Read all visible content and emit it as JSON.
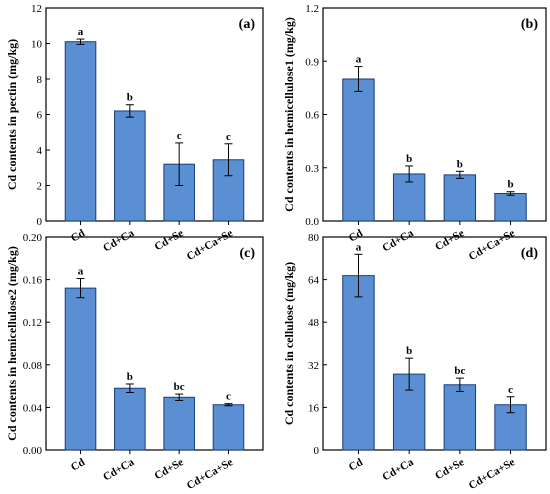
{
  "chart_data": [
    {
      "type": "bar",
      "panel": "(a)",
      "ylabel": "Cd contents in pectin (mg/kg)",
      "categories": [
        "Cd",
        "Cd+Ca",
        "Cd+Se",
        "Cd+Ca+Se"
      ],
      "values": [
        10.1,
        6.2,
        3.2,
        3.45
      ],
      "errors": [
        0.15,
        0.35,
        1.2,
        0.9
      ],
      "significance": [
        "a",
        "b",
        "c",
        "c"
      ],
      "ylim": [
        0,
        12
      ],
      "yticks": [
        0,
        2,
        4,
        6,
        8,
        10,
        12
      ],
      "ytick_labels": [
        "0",
        "2",
        "4",
        "6",
        "8",
        "10",
        "12"
      ]
    },
    {
      "type": "bar",
      "panel": "(b)",
      "ylabel": "Cd contents in hemicellulose1 (mg/kg)",
      "categories": [
        "Cd",
        "Cd+Ca",
        "Cd+Se",
        "Cd+Ca+Se"
      ],
      "values": [
        0.8,
        0.265,
        0.26,
        0.155
      ],
      "errors": [
        0.07,
        0.045,
        0.02,
        0.01
      ],
      "significance": [
        "a",
        "b",
        "b",
        "b"
      ],
      "ylim": [
        0,
        1.2
      ],
      "yticks": [
        0,
        0.3,
        0.6,
        0.9,
        1.2
      ],
      "ytick_labels": [
        "0.0",
        "0.3",
        "0.6",
        "0.9",
        "1.2"
      ]
    },
    {
      "type": "bar",
      "panel": "(c)",
      "ylabel": "Cd contents in hemicellulose2 (mg/kg)",
      "categories": [
        "Cd",
        "Cd+Ca",
        "Cd+Se",
        "Cd+Ca+Se"
      ],
      "values": [
        0.152,
        0.058,
        0.0495,
        0.0425
      ],
      "errors": [
        0.009,
        0.004,
        0.003,
        0.001
      ],
      "significance": [
        "a",
        "b",
        "bc",
        "c"
      ],
      "ylim": [
        0,
        0.2
      ],
      "yticks": [
        0,
        0.04,
        0.08,
        0.12,
        0.16,
        0.2
      ],
      "ytick_labels": [
        "0.00",
        "0.04",
        "0.08",
        "0.12",
        "0.16",
        "0.20"
      ]
    },
    {
      "type": "bar",
      "panel": "(d)",
      "ylabel": "Cd contents in cellulose (mg/kg)",
      "categories": [
        "Cd",
        "Cd+Ca",
        "Cd+Se",
        "Cd+Ca+Se"
      ],
      "values": [
        65.5,
        28.5,
        24.5,
        17
      ],
      "errors": [
        8,
        6,
        2.5,
        3
      ],
      "significance": [
        "a",
        "b",
        "bc",
        "c"
      ],
      "ylim": [
        0,
        80
      ],
      "yticks": [
        0,
        16,
        32,
        48,
        64,
        80
      ],
      "ytick_labels": [
        "0",
        "16",
        "32",
        "48",
        "64",
        "80"
      ]
    }
  ],
  "colors": {
    "bar_fill": "#5b8fd4",
    "bar_edge": "#1a3d78"
  }
}
